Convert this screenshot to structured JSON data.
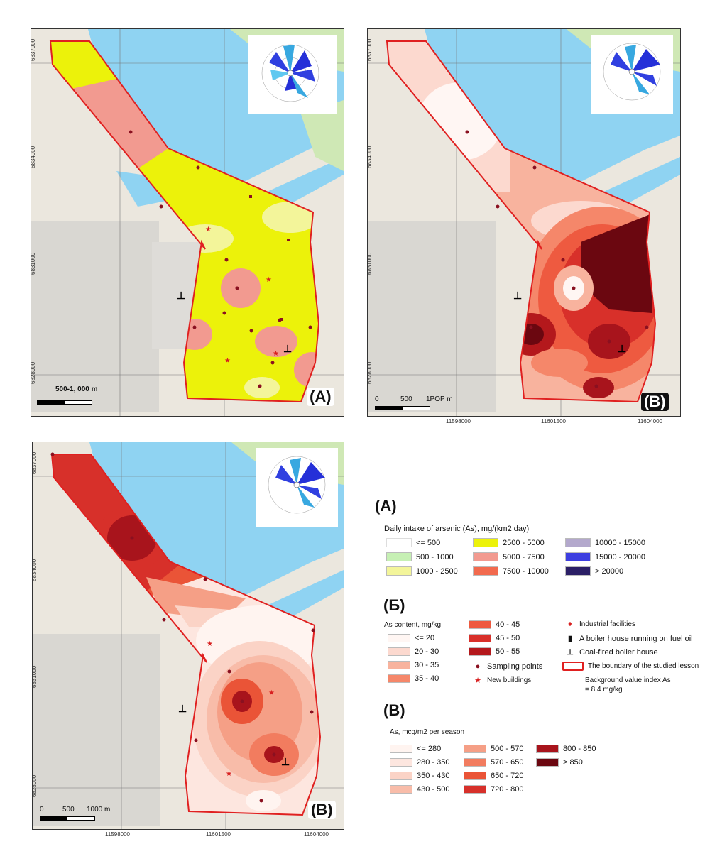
{
  "panel_a": {
    "label": "(A)",
    "scale_text": "500-1, 000 m",
    "coords_left": [
      "6837000",
      "6834000",
      "6831000",
      "6828000"
    ]
  },
  "panel_b": {
    "label": "(B)",
    "scale_text_0": "0",
    "scale_text_1": "500",
    "scale_text_2": "1POP m",
    "coords_left": [
      "6837000",
      "6834000",
      "6831000",
      "6828000"
    ],
    "coords_bottom": [
      "11598000",
      "11601500",
      "11604000"
    ]
  },
  "panel_c": {
    "label": "(B)",
    "scale_text_0": "0",
    "scale_text_1": "500",
    "scale_text_2": "1000 m",
    "coords_left": [
      "6837000",
      "6834000",
      "6831000",
      "6828000"
    ],
    "coords_bottom": [
      "11598000",
      "11601500",
      "11604000"
    ]
  },
  "legend_a": {
    "heading": "(A)",
    "title": "Daily intake of arsenic (As), mg/(km2 day)",
    "items": [
      {
        "label": "<= 500",
        "color": "#ffffff"
      },
      {
        "label": "500 - 1000",
        "color": "#c6f0b4"
      },
      {
        "label": "1000 - 2500",
        "color": "#f3f59a"
      },
      {
        "label": "2500 - 5000",
        "color": "#ecf20a"
      },
      {
        "label": "5000 - 7500",
        "color": "#f29a90"
      },
      {
        "label": "7500 - 10000",
        "color": "#f26a4e"
      },
      {
        "label": "10000 - 15000",
        "color": "#b3a8cc"
      },
      {
        "label": "15000 - 20000",
        "color": "#3d3ee0"
      },
      {
        "label": "> 20000",
        "color": "#2b1f66"
      }
    ]
  },
  "legend_b": {
    "heading": "(Б)",
    "title": "As content, mg/kg",
    "items": [
      {
        "label": "<= 20",
        "color": "#fff6f3"
      },
      {
        "label": "20 - 30",
        "color": "#fcd9cf"
      },
      {
        "label": "30 - 35",
        "color": "#f8b39e"
      },
      {
        "label": "35 - 40",
        "color": "#f5876a"
      },
      {
        "label": "40 - 45",
        "color": "#ee5a40"
      },
      {
        "label": "45 - 50",
        "color": "#d8302a"
      },
      {
        "label": "50 - 55",
        "color": "#b4181c"
      }
    ],
    "symbols": [
      {
        "icon": "sampling-point-icon",
        "label": "Sampling points"
      },
      {
        "icon": "new-building-icon",
        "label": "New buildings"
      },
      {
        "icon": "industrial-facility-icon",
        "label": "Industrial facilities"
      },
      {
        "icon": "fuel-oil-boiler-icon",
        "label": "A boiler house running on fuel oil"
      },
      {
        "icon": "coal-boiler-icon",
        "label": "Coal-fired boiler house"
      },
      {
        "icon": "boundary-icon",
        "label": "The boundary of the studied lesson"
      }
    ],
    "background_note_1": "Background value index As",
    "background_note_2": "= 8.4 mg/kg"
  },
  "legend_c": {
    "heading": "(B)",
    "title": "As, mcg/m2 per season",
    "items": [
      {
        "label": "<= 280",
        "color": "#fff4f0"
      },
      {
        "label": "280 - 350",
        "color": "#fde6df"
      },
      {
        "label": "350 - 430",
        "color": "#fbd3c6"
      },
      {
        "label": "430 - 500",
        "color": "#f8bca9"
      },
      {
        "label": "500 - 570",
        "color": "#f59f86"
      },
      {
        "label": "570 - 650",
        "color": "#f27c5f"
      },
      {
        "label": "650 - 720",
        "color": "#ea5437"
      },
      {
        "label": "720 - 800",
        "color": "#d7302a"
      },
      {
        "label": "800 - 850",
        "color": "#a8141c"
      },
      {
        "label": "> 850",
        "color": "#6b0710"
      }
    ]
  }
}
